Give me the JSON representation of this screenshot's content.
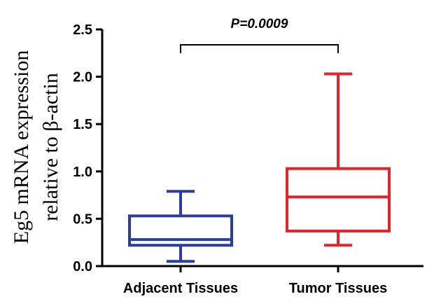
{
  "chart_data": {
    "type": "boxplot",
    "title": "",
    "xlabel": "",
    "ylabel_lines": [
      "Eg5 mRNA expression",
      "relative to β-actin"
    ],
    "ylim": [
      0,
      2.5
    ],
    "yticks": [
      0.0,
      0.5,
      1.0,
      1.5,
      2.0,
      2.5
    ],
    "ytick_labels": [
      "0.0",
      "0.5",
      "1.0",
      "1.5",
      "2.0",
      "2.5"
    ],
    "grid": false,
    "categories": [
      "Adjacent Tissues",
      "Tumor Tissues"
    ],
    "series": [
      {
        "name": "Adjacent Tissues",
        "color": "#2b3ea0",
        "min": 0.05,
        "q1": 0.22,
        "median": 0.28,
        "q3": 0.53,
        "max": 0.79
      },
      {
        "name": "Tumor Tissues",
        "color": "#e0262b",
        "min": 0.22,
        "q1": 0.37,
        "median": 0.73,
        "q3": 1.03,
        "max": 2.03
      }
    ],
    "annotation": {
      "text": "P=0.0009",
      "between": [
        "Adjacent Tissues",
        "Tumor Tissues"
      ]
    }
  }
}
